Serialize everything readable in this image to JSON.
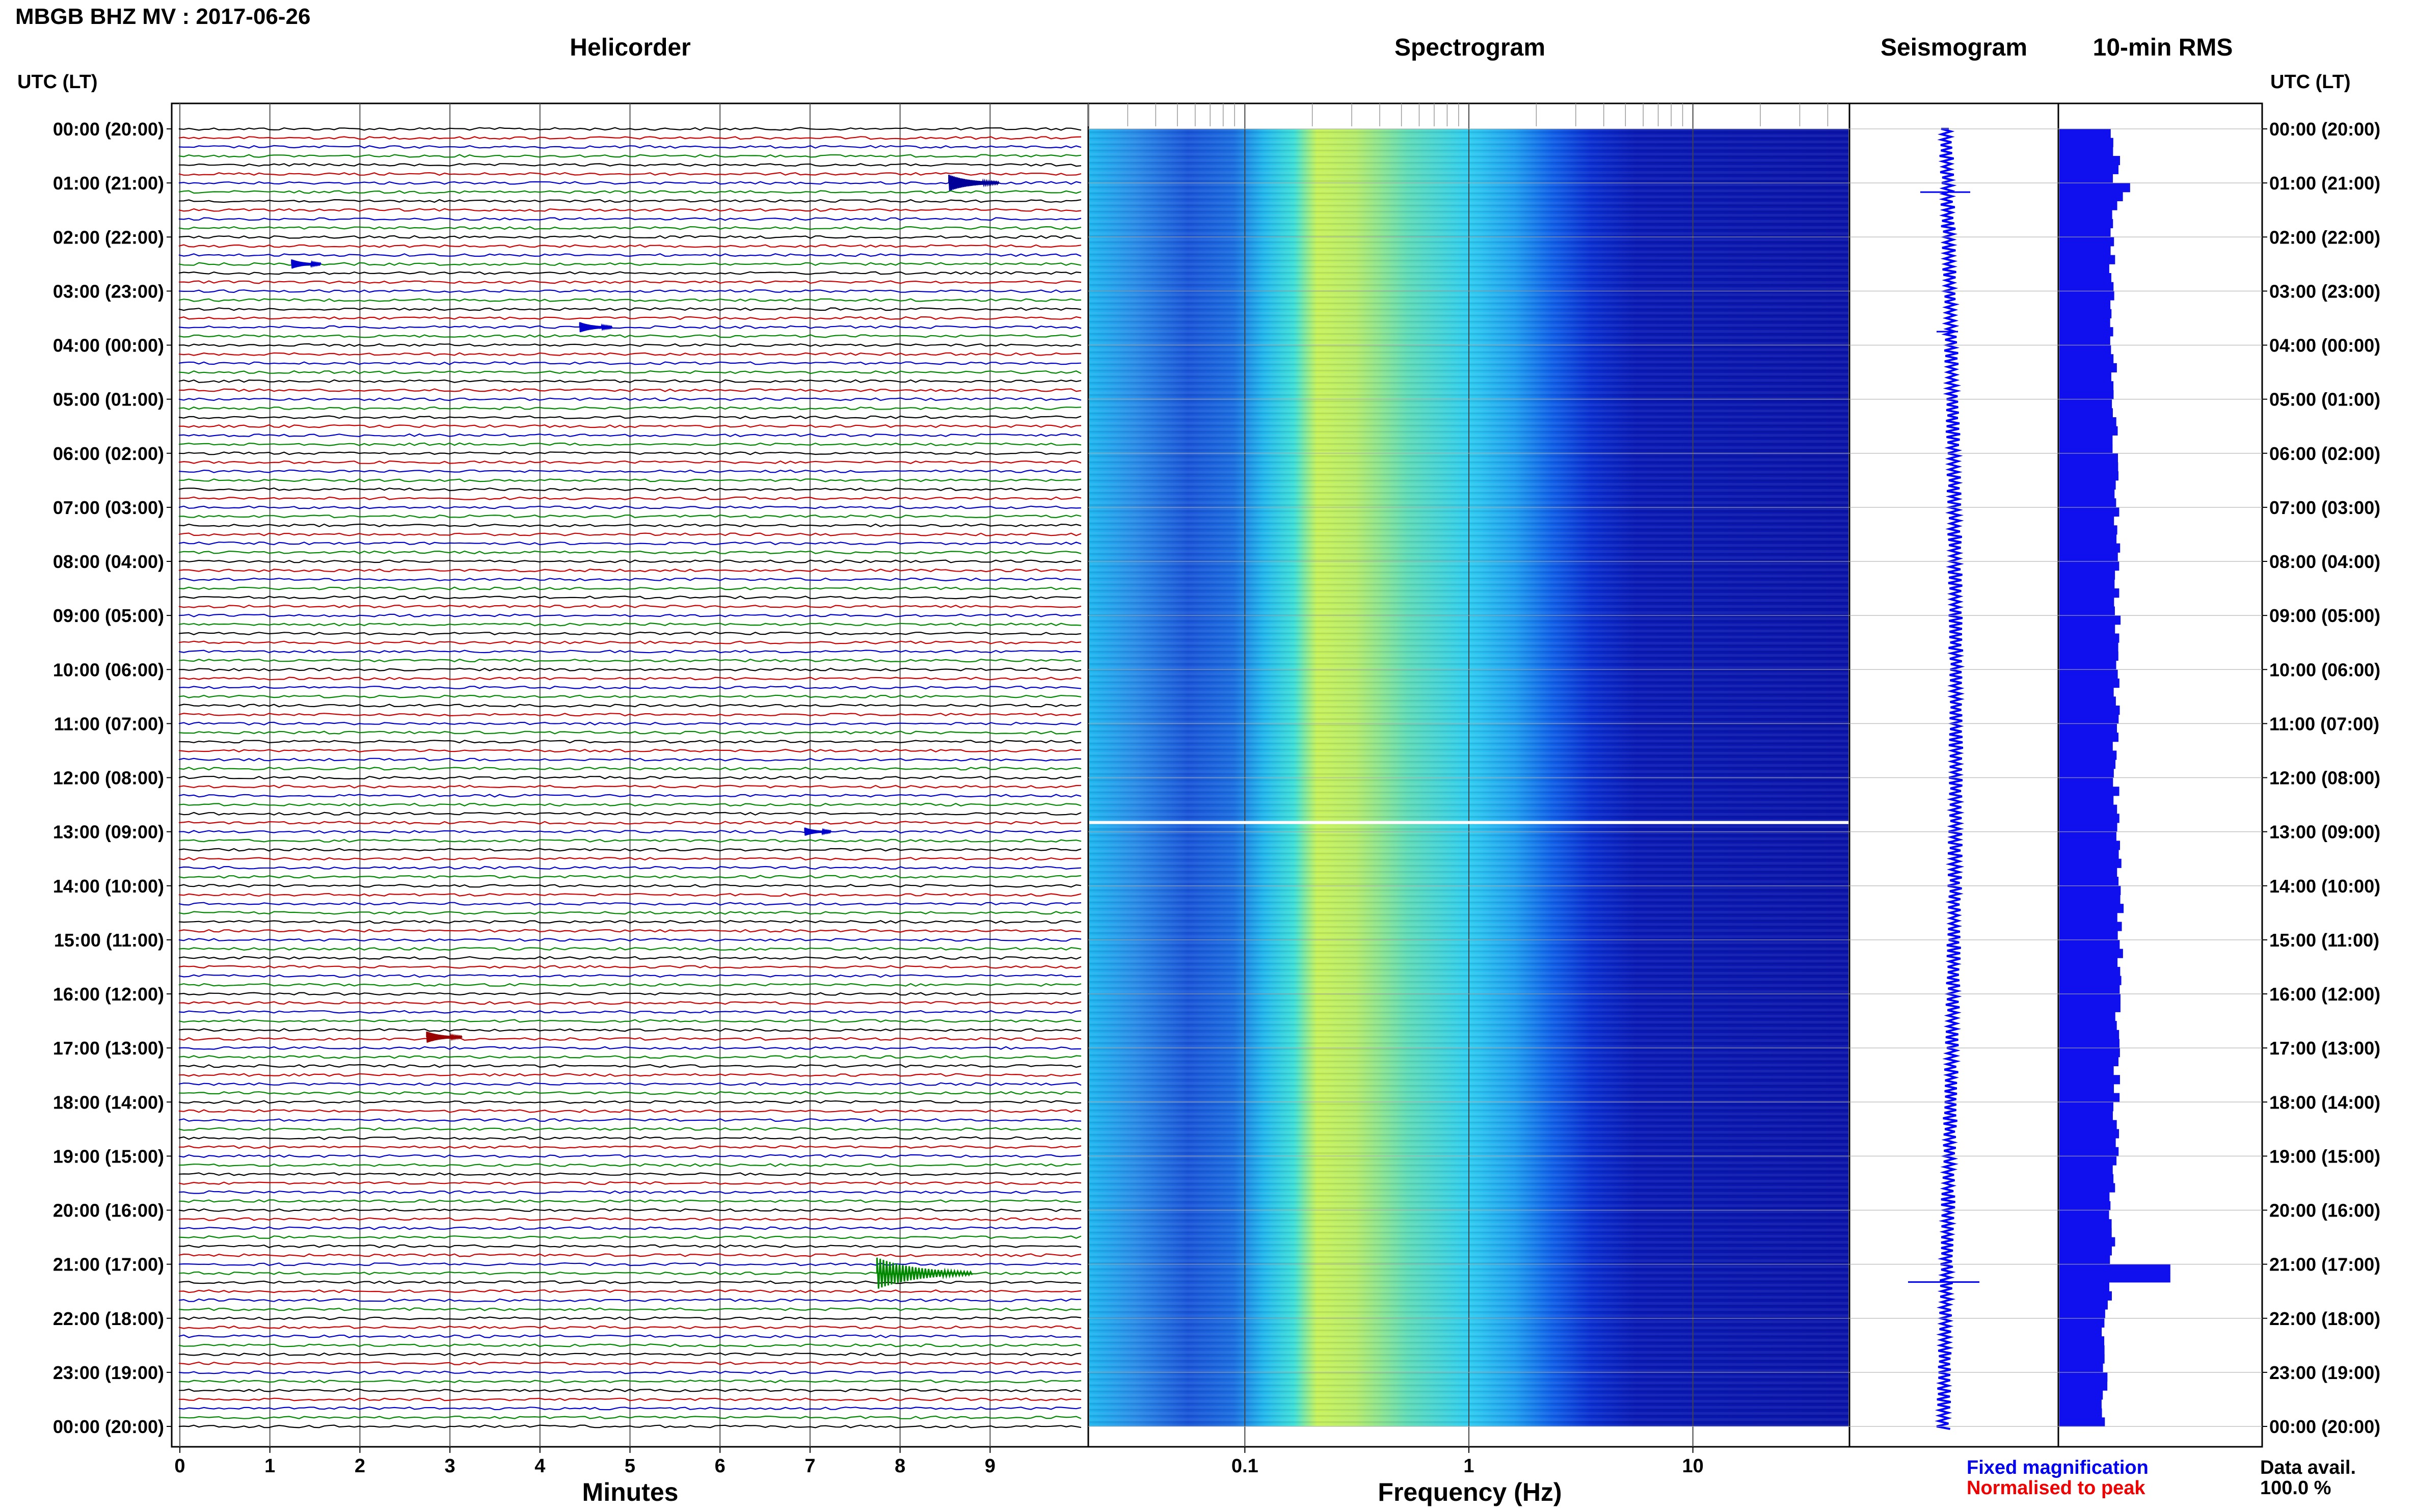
{
  "title": "MBGB BHZ MV : 2017-06-26",
  "panels": {
    "helicorder": "Helicorder",
    "spectrogram": "Spectrogram",
    "seismogram": "Seismogram",
    "rms": "10-min RMS"
  },
  "time_header": "UTC (LT)",
  "axis_titles": {
    "minutes": "Minutes",
    "frequency": "Frequency (Hz)"
  },
  "legend": {
    "fixed": "Fixed magnification",
    "normalised": "Normalised to peak",
    "fixed_color": "#0000ee",
    "normalised_color": "#ee0000"
  },
  "availability": {
    "label": "Data avail.",
    "value": "100.0 %"
  },
  "trace_colors": [
    "#000000",
    "#cc0000",
    "#0000cc",
    "#008800"
  ],
  "chart_data": {
    "type": "heatmap",
    "time_axis": {
      "labels": [
        "00:00 (20:00)",
        "01:00 (21:00)",
        "02:00 (22:00)",
        "03:00 (23:00)",
        "04:00 (00:00)",
        "05:00 (01:00)",
        "06:00 (02:00)",
        "07:00 (03:00)",
        "08:00 (04:00)",
        "09:00 (05:00)",
        "10:00 (06:00)",
        "11:00 (07:00)",
        "12:00 (08:00)",
        "13:00 (09:00)",
        "14:00 (10:00)",
        "15:00 (11:00)",
        "16:00 (12:00)",
        "17:00 (13:00)",
        "18:00 (14:00)",
        "19:00 (15:00)",
        "20:00 (16:00)",
        "21:00 (17:00)",
        "22:00 (18:00)",
        "23:00 (19:00)",
        "00:00 (20:00)"
      ],
      "range_hours": [
        0,
        24
      ]
    },
    "helicorder": {
      "x_ticks": [
        0,
        1,
        2,
        3,
        4,
        5,
        6,
        7,
        8,
        9
      ],
      "xlim_minutes": [
        0,
        10
      ],
      "traces_per_hour": 6,
      "events": [
        {
          "hour": 1.0,
          "minute": 8.6,
          "amplitude": 1.0
        },
        {
          "hour": 2.5,
          "minute": 1.3,
          "amplitude": 0.3
        },
        {
          "hour": 3.67,
          "minute": 4.5,
          "amplitude": 0.4
        },
        {
          "hour": 13.0,
          "minute": 7.0,
          "amplitude": 0.2
        },
        {
          "hour": 16.8,
          "minute": 2.8,
          "amplitude": 0.5
        },
        {
          "hour": 21.17,
          "minute": 7.8,
          "amplitude": 2.5
        }
      ]
    },
    "spectrogram": {
      "x_tick_labels": [
        "0.1",
        "1",
        "10"
      ],
      "x_ticks_hz": [
        0.1,
        1,
        10
      ],
      "xlim_hz": [
        0.02,
        50
      ],
      "log_x": true,
      "peak_band_hz": [
        0.25,
        0.6
      ],
      "colormap": "jet",
      "gap_hour": 12.83
    },
    "seismogram": {
      "spikes": [
        {
          "hour": 1.17,
          "amplitude": 0.7
        },
        {
          "hour": 3.75,
          "amplitude": 0.3
        },
        {
          "hour": 21.33,
          "amplitude": 1.0
        }
      ]
    },
    "rms": {
      "interval_minutes": 10,
      "xlim": [
        0,
        1
      ],
      "profile": [
        [
          0,
          0.24
        ],
        [
          0.5,
          0.29
        ],
        [
          1.0,
          0.27
        ],
        [
          1.1,
          0.36
        ],
        [
          1.3,
          0.28
        ],
        [
          2,
          0.27
        ],
        [
          3,
          0.26
        ],
        [
          4,
          0.27
        ],
        [
          6,
          0.28
        ],
        [
          8,
          0.29
        ],
        [
          10,
          0.29
        ],
        [
          12,
          0.28
        ],
        [
          13,
          0.3
        ],
        [
          15,
          0.31
        ],
        [
          17,
          0.29
        ],
        [
          19,
          0.28
        ],
        [
          20,
          0.26
        ],
        [
          21.0,
          0.27
        ],
        [
          21.17,
          0.55
        ],
        [
          21.4,
          0.26
        ],
        [
          22,
          0.22
        ],
        [
          23,
          0.23
        ],
        [
          24,
          0.22
        ]
      ]
    }
  }
}
